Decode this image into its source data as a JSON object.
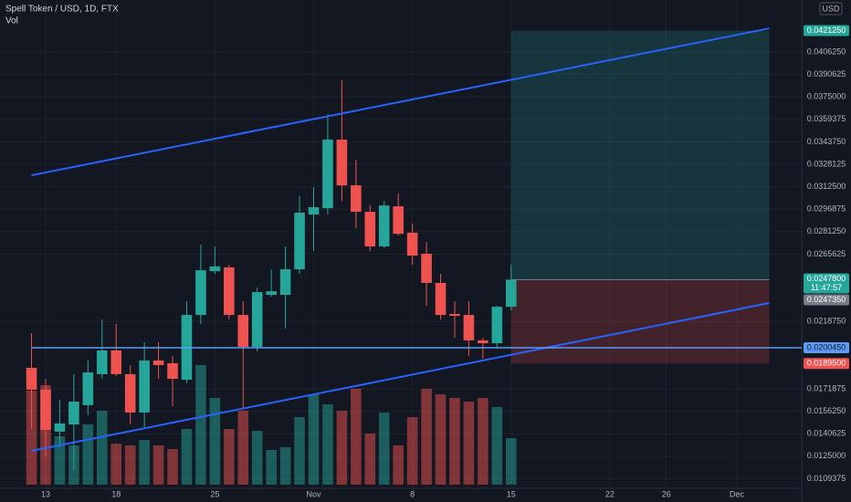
{
  "chart_data": {
    "type": "candlestick",
    "title": "Spell Token / USD, 1D, FTX",
    "volume_label": "Vol",
    "currency": "USD",
    "x": [
      -1,
      0,
      1,
      2,
      3,
      4,
      5,
      6,
      7,
      8,
      9,
      10,
      11,
      12,
      13,
      14,
      15,
      16,
      17,
      18,
      19,
      20,
      21,
      22,
      23,
      24,
      25,
      26,
      27,
      28,
      29,
      30,
      31,
      32,
      33
    ],
    "open": [
      0.01865,
      0.01713,
      0.01421,
      0.01471,
      0.01605,
      0.01821,
      0.01986,
      0.01821,
      0.01554,
      0.01916,
      0.01897,
      0.01782,
      0.02233,
      0.02538,
      0.02564,
      0.02233,
      0.02011,
      0.02373,
      0.02373,
      0.02551,
      0.02932,
      0.02976,
      0.03453,
      0.03135,
      0.02951,
      0.0271,
      0.02989,
      0.02805,
      0.02659,
      0.02456,
      0.0224,
      0.02233,
      0.02056,
      0.02036,
      0.0229
    ],
    "high": [
      0.02106,
      0.01789,
      0.01643,
      0.01821,
      0.01916,
      0.02202,
      0.0217,
      0.01884,
      0.02043,
      0.02043,
      0.01948,
      0.02329,
      0.02722,
      0.0271,
      0.02583,
      0.02329,
      0.02424,
      0.02551,
      0.0271,
      0.03059,
      0.03122,
      0.0363,
      0.03865,
      0.03313,
      0.02995,
      0.03027,
      0.03078,
      0.02868,
      0.02741,
      0.02519,
      0.02329,
      0.02329,
      0.02075,
      0.02297,
      0.02583
    ],
    "low": [
      0.0144,
      0.01249,
      0.01313,
      0.01154,
      0.01535,
      0.01789,
      0.01808,
      0.01471,
      0.01452,
      0.01789,
      0.01598,
      0.01757,
      0.0217,
      0.02519,
      0.02202,
      0.01579,
      0.01979,
      0.0236,
      0.02138,
      0.02519,
      0.02678,
      0.02932,
      0.03027,
      0.02837,
      0.02678,
      0.02697,
      0.02786,
      0.02583,
      0.02297,
      0.02202,
      0.02075,
      0.01948,
      0.01929,
      0.01998,
      0.02265
    ],
    "close": [
      0.01713,
      0.01433,
      0.01478,
      0.0163,
      0.01833,
      0.01986,
      0.01821,
      0.01554,
      0.01916,
      0.01884,
      0.01789,
      0.02233,
      0.02544,
      0.0257,
      0.02233,
      0.02011,
      0.02392,
      0.02398,
      0.02551,
      0.02945,
      0.02983,
      0.03453,
      0.03135,
      0.02951,
      0.0271,
      0.02995,
      0.02798,
      0.02646,
      0.02456,
      0.02233,
      0.02227,
      0.02056,
      0.02036,
      0.0229,
      0.02478
    ],
    "volume": [
      103,
      109,
      53,
      43,
      66,
      81,
      45,
      43,
      49,
      43,
      39,
      61,
      131,
      95,
      61,
      81,
      59,
      38,
      41,
      74,
      99,
      88,
      81,
      105,
      56,
      79,
      43,
      74,
      105,
      99,
      95,
      91,
      95,
      85,
      51
    ],
    "up_color": "#26a69a",
    "down_color": "#ef5350",
    "xlim": [
      -3.236,
      53.6
    ],
    "xticks": [
      {
        "value": 0,
        "label": "13"
      },
      {
        "value": 5,
        "label": "18"
      },
      {
        "value": 12,
        "label": "25"
      },
      {
        "value": 19,
        "label": "Nov"
      },
      {
        "value": 26,
        "label": "8"
      },
      {
        "value": 33,
        "label": "15"
      },
      {
        "value": 40,
        "label": "22"
      },
      {
        "value": 44,
        "label": "26"
      },
      {
        "value": 49,
        "label": "Dec"
      }
    ],
    "ylim": [
      0.010265,
      0.04425
    ],
    "yticks": [
      {
        "value": 0.040625,
        "label": "0.0406250"
      },
      {
        "value": 0.0390625,
        "label": "0.0390625"
      },
      {
        "value": 0.0375,
        "label": "0.0375000"
      },
      {
        "value": 0.0359375,
        "label": "0.0359375"
      },
      {
        "value": 0.034375,
        "label": "0.0343750"
      },
      {
        "value": 0.0328125,
        "label": "0.0328125"
      },
      {
        "value": 0.03125,
        "label": "0.0312500"
      },
      {
        "value": 0.0296875,
        "label": "0.0296875"
      },
      {
        "value": 0.028125,
        "label": "0.0281250"
      },
      {
        "value": 0.0265625,
        "label": "0.0265625"
      },
      {
        "value": 0.021875,
        "label": "0.0218750"
      },
      {
        "value": 0.0171875,
        "label": "0.0171875"
      },
      {
        "value": 0.015625,
        "label": "0.0156250"
      },
      {
        "value": 0.0140625,
        "label": "0.0140625"
      },
      {
        "value": 0.0125,
        "label": "0.0125000"
      },
      {
        "value": 0.0109375,
        "label": "0.0109375"
      }
    ],
    "grid": true,
    "trend_lines": [
      {
        "x": [
          -1,
          51.3
        ],
        "y": [
          0.03205,
          0.042276
        ],
        "color": "#2962ff"
      },
      {
        "x": [
          -1,
          51.3
        ],
        "y": [
          0.012869,
          0.023158
        ],
        "color": "#2962ff"
      }
    ],
    "horizontal_line": {
      "value": 0.020045,
      "label": "0.0200450",
      "color": "#5b9cf6"
    },
    "position": {
      "x": [
        33,
        51.3
      ],
      "entry": 0.02478,
      "entry_label": "0.0247800",
      "target": 0.042125,
      "target_label": "0.0421250",
      "stop": 0.01895,
      "stop_label": "0.0189500",
      "countdown": "11:47:57"
    },
    "last_price": {
      "value": 0.024735,
      "label": "0.0247350"
    }
  }
}
